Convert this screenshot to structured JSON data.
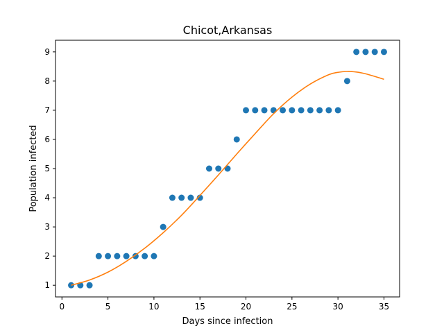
{
  "chart_data": {
    "type": "scatter",
    "title": "Chicot,Arkansas",
    "xlabel": "Days since infection",
    "ylabel": "Population infected",
    "xlim": [
      -0.7,
      36.7
    ],
    "ylim": [
      0.6,
      9.4
    ],
    "xticks": [
      0,
      5,
      10,
      15,
      20,
      25,
      30,
      35
    ],
    "yticks": [
      1,
      2,
      3,
      4,
      5,
      6,
      7,
      8,
      9
    ],
    "grid": false,
    "series": [
      {
        "kind": "points",
        "color": "#1f77b4",
        "x": [
          1,
          2,
          3,
          4,
          5,
          6,
          7,
          8,
          9,
          10,
          11,
          12,
          13,
          14,
          15,
          16,
          17,
          18,
          19,
          20,
          21,
          22,
          23,
          24,
          25,
          26,
          27,
          28,
          29,
          30,
          31,
          32,
          33,
          34,
          35
        ],
        "y": [
          1,
          1,
          1,
          2,
          2,
          2,
          2,
          2,
          2,
          2,
          3,
          4,
          4,
          4,
          4,
          5,
          5,
          5,
          6,
          7,
          7,
          7,
          7,
          7,
          7,
          7,
          7,
          7,
          7,
          7,
          8,
          9,
          9,
          9,
          9
        ]
      },
      {
        "kind": "fit-line",
        "color": "#ff7f0e",
        "x": [
          1,
          3,
          5,
          7,
          9,
          11,
          13,
          15,
          17,
          19,
          21,
          23,
          25,
          27,
          29,
          30,
          31,
          32,
          33,
          34,
          35
        ],
        "y": [
          1.0,
          1.18,
          1.45,
          1.82,
          2.27,
          2.8,
          3.4,
          4.08,
          4.78,
          5.5,
          6.2,
          6.88,
          7.45,
          7.9,
          8.22,
          8.3,
          8.33,
          8.31,
          8.25,
          8.16,
          8.06
        ]
      }
    ]
  }
}
